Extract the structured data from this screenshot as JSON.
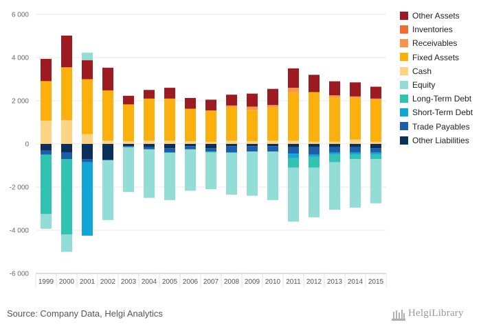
{
  "chart_data": {
    "type": "bar",
    "stacked": true,
    "categories": [
      "1999",
      "2000",
      "2001",
      "2002",
      "2003",
      "2004",
      "2005",
      "2006",
      "2007",
      "2008",
      "2009",
      "2010",
      "2011",
      "2012",
      "2013",
      "2014",
      "2015"
    ],
    "yticks": [
      6000,
      4000,
      2000,
      0,
      -2000,
      -4000,
      -6000
    ],
    "ytick_labels": [
      "6 000",
      "4 000",
      "2 000",
      "0",
      "-2 000",
      "-4 000",
      "-6 000"
    ],
    "ylim": [
      -6000,
      6000
    ],
    "legend_position": "right",
    "series": [
      {
        "name": "Other Liabilities",
        "color": "#0b2f5b",
        "values": [
          -300,
          -400,
          -700,
          -750,
          -100,
          -150,
          -200,
          -100,
          -200,
          -100,
          -100,
          -100,
          -150,
          -150,
          -150,
          -150,
          -200
        ]
      },
      {
        "name": "Trade Payables",
        "color": "#1b5ea9",
        "values": [
          -200,
          -300,
          -150,
          0,
          -50,
          -100,
          -200,
          -150,
          -150,
          -300,
          -250,
          -250,
          -300,
          -350,
          -250,
          -250,
          -200
        ]
      },
      {
        "name": "Short-Term Debt",
        "color": "#12a5d5",
        "values": [
          0,
          0,
          -3400,
          0,
          0,
          0,
          0,
          0,
          0,
          0,
          0,
          0,
          -200,
          -100,
          -100,
          -100,
          -100
        ]
      },
      {
        "name": "Long-Term Debt",
        "color": "#30c3b1",
        "values": [
          -2750,
          -3500,
          0,
          0,
          0,
          0,
          0,
          0,
          -50,
          0,
          0,
          0,
          -450,
          -500,
          -350,
          -200,
          -200
        ]
      },
      {
        "name": "Equity",
        "color": "#92ddd6",
        "values": [
          -680,
          -800,
          0,
          -2780,
          -2080,
          -2250,
          -2200,
          -1920,
          -1700,
          -1950,
          -2050,
          -2250,
          -2500,
          -2300,
          -2200,
          -2250,
          -2050
        ]
      },
      {
        "name": "Cash",
        "color": "#fdd483",
        "values": [
          1080,
          1100,
          450,
          150,
          130,
          150,
          150,
          130,
          100,
          150,
          130,
          150,
          150,
          100,
          100,
          200,
          100
        ]
      },
      {
        "name": "Fixed Assets",
        "color": "#fbb00d",
        "values": [
          1830,
          2450,
          2550,
          2330,
          1700,
          1950,
          1950,
          1500,
          1450,
          1550,
          1450,
          1550,
          2250,
          2300,
          2050,
          1950,
          1950
        ]
      },
      {
        "name": "Receivables",
        "color": "#f7954d",
        "values": [
          0,
          0,
          0,
          0,
          0,
          0,
          0,
          0,
          0,
          80,
          150,
          100,
          200,
          0,
          100,
          50,
          50
        ]
      },
      {
        "name": "Inventories",
        "color": "#f36b30",
        "values": [
          0,
          0,
          0,
          0,
          0,
          0,
          0,
          0,
          0,
          0,
          0,
          0,
          0,
          0,
          0,
          0,
          0
        ]
      },
      {
        "name": "Other Assets",
        "color": "#9d1a20",
        "values": [
          1030,
          1470,
          880,
          1050,
          400,
          400,
          500,
          500,
          500,
          500,
          600,
          750,
          900,
          800,
          650,
          650,
          550
        ]
      },
      {
        "name": "Equity (positive)",
        "legend": false,
        "color": "#92ddd6",
        "values": [
          0,
          0,
          350,
          0,
          0,
          0,
          0,
          0,
          0,
          0,
          0,
          0,
          0,
          0,
          0,
          0,
          0
        ]
      }
    ],
    "legend_order": [
      "Other Assets",
      "Inventories",
      "Receivables",
      "Fixed Assets",
      "Cash",
      "Equity",
      "Long-Term Debt",
      "Short-Term Debt",
      "Trade Payables",
      "Other Liabilities"
    ]
  },
  "footer": {
    "source": "Source: Company Data, Helgi Analytics",
    "brand": "HelgiLibrary"
  }
}
